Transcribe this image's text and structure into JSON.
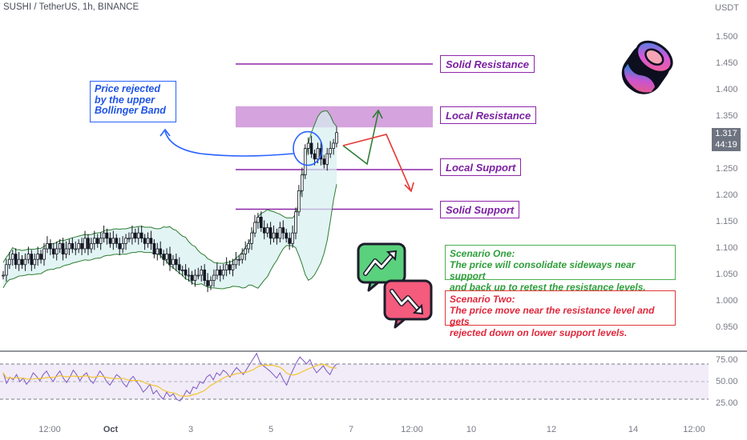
{
  "header": {
    "title": "SUSHI / TetherUS, 1h, BINANCE",
    "currency": "USDT"
  },
  "price_axis": [
    "1.500",
    "1.450",
    "1.400",
    "1.350",
    "1.250",
    "1.200",
    "1.150",
    "1.100",
    "1.050",
    "1.000",
    "0.950"
  ],
  "current_price": {
    "value": "1.317",
    "countdown": "44:19"
  },
  "rsi_axis": [
    "75.00",
    "50.00",
    "25.00"
  ],
  "time_axis": [
    "12:00",
    "Oct",
    "3",
    "5",
    "7",
    "12:00",
    "10",
    "12",
    "14",
    "12:00"
  ],
  "levels": {
    "solid_resistance": "Solid Resistance",
    "local_resistance": "Local Resistance",
    "local_support": "Local Support",
    "solid_support": "Solid Support"
  },
  "annotation": {
    "line1": "Price rejected",
    "line2": "by the upper",
    "line3": "Bollinger Band"
  },
  "scenario_one": {
    "title": "Scenario One:",
    "line1": "The price will consolidate sideways near support",
    "line2": "and back up to retest the resistance levels."
  },
  "scenario_two": {
    "title": "Scenario Two:",
    "line1": "The price move near the resistance level and gets",
    "line2": "rejected down on lower support levels."
  },
  "colors": {
    "level_purple": "#8e24aa",
    "zone_fill": "#ce93d8",
    "band_line": "#2e7d32",
    "band_fill": "#d6efef",
    "annotation_blue": "#2962ff",
    "scenario_green": "#2e9e3a",
    "scenario_red": "#e0283c",
    "rsi_line": "#7e57c2",
    "rsi_ma": "#f4c430"
  },
  "icons": {
    "logo": "sushi-logo-icon",
    "up": "chart-up-speech-icon",
    "down": "chart-down-speech-icon"
  },
  "chart_data": {
    "type": "candlestick",
    "symbol": "SUSHI / TetherUS",
    "interval": "1h",
    "y_axis_ticks": [
      1.5,
      1.45,
      1.4,
      1.35,
      1.25,
      1.2,
      1.15,
      1.1,
      1.05,
      1.0,
      0.95
    ],
    "ylim": [
      0.93,
      1.52
    ],
    "close_series": [
      1.05,
      1.07,
      1.08,
      1.09,
      1.07,
      1.08,
      1.07,
      1.08,
      1.09,
      1.07,
      1.08,
      1.09,
      1.08,
      1.1,
      1.11,
      1.1,
      1.09,
      1.1,
      1.11,
      1.09,
      1.1,
      1.11,
      1.1,
      1.1,
      1.11,
      1.1,
      1.12,
      1.1,
      1.11,
      1.12,
      1.11,
      1.12,
      1.13,
      1.12,
      1.11,
      1.12,
      1.11,
      1.1,
      1.11,
      1.12,
      1.12,
      1.13,
      1.12,
      1.13,
      1.12,
      1.11,
      1.12,
      1.11,
      1.09,
      1.1,
      1.09,
      1.08,
      1.09,
      1.07,
      1.08,
      1.07,
      1.06,
      1.06,
      1.05,
      1.05,
      1.04,
      1.05,
      1.05,
      1.06,
      1.04,
      1.03,
      1.04,
      1.05,
      1.06,
      1.05,
      1.06,
      1.07,
      1.06,
      1.07,
      1.08,
      1.08,
      1.09,
      1.1,
      1.11,
      1.13,
      1.15,
      1.16,
      1.14,
      1.13,
      1.14,
      1.12,
      1.13,
      1.12,
      1.14,
      1.13,
      1.12,
      1.11,
      1.13,
      1.17,
      1.21,
      1.24,
      1.29,
      1.3,
      1.28,
      1.27,
      1.29,
      1.27,
      1.26,
      1.28,
      1.29,
      1.3,
      1.32
    ],
    "levels": [
      {
        "name": "Solid Resistance",
        "price": 1.45
      },
      {
        "name": "Local Resistance",
        "from": 1.33,
        "to": 1.37
      },
      {
        "name": "Local Support",
        "price": 1.25
      },
      {
        "name": "Solid Support",
        "price": 1.175
      }
    ],
    "rsi": {
      "ticks": [
        75,
        50,
        25
      ],
      "bands": [
        70,
        30
      ],
      "values": [
        60,
        48,
        55,
        52,
        58,
        50,
        54,
        47,
        52,
        60,
        56,
        51,
        58,
        62,
        55,
        50,
        57,
        62,
        54,
        49,
        55,
        63,
        58,
        51,
        57,
        60,
        52,
        48,
        55,
        62,
        57,
        50,
        46,
        52,
        58,
        55,
        48,
        44,
        52,
        56,
        50,
        45,
        38,
        42,
        47,
        36,
        40,
        34,
        30,
        38,
        33,
        36,
        30,
        28,
        33,
        40,
        36,
        44,
        42,
        50,
        48,
        55,
        58,
        52,
        60,
        57,
        63,
        60,
        55,
        61,
        66,
        62,
        58,
        64,
        70,
        76,
        82,
        72,
        68,
        65,
        62,
        58,
        54,
        60,
        52,
        46,
        56,
        64,
        72,
        78,
        74,
        70,
        75,
        66,
        60,
        64,
        68,
        62,
        58,
        66,
        70
      ]
    }
  }
}
